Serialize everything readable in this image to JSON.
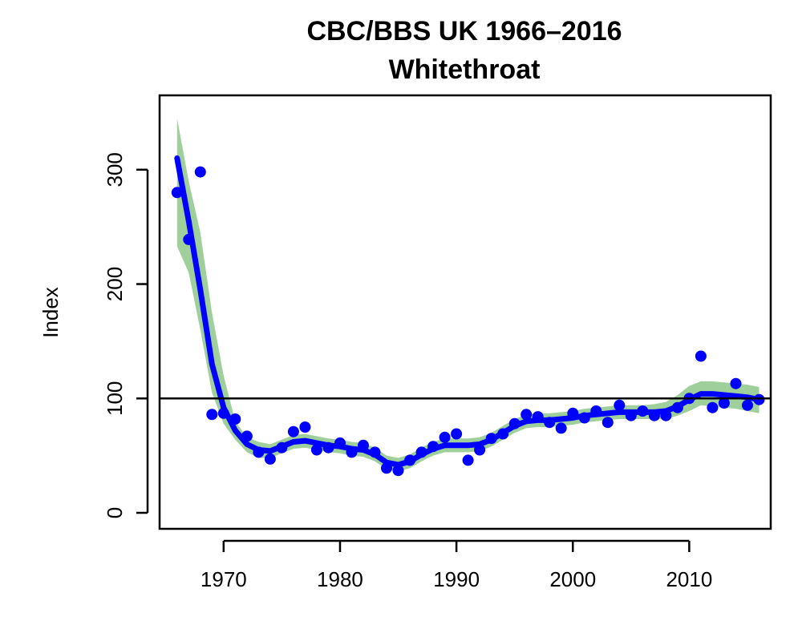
{
  "chart_data": {
    "type": "line",
    "title": "CBC/BBS UK 1966–2016",
    "subtitle": "Whitethroat",
    "xlabel": "",
    "ylabel": "Index",
    "xlim": [
      1964.5,
      2017
    ],
    "ylim": [
      -14,
      365
    ],
    "x_ticks": [
      1970,
      1980,
      1990,
      2000,
      2010
    ],
    "y_ticks": [
      0,
      100,
      200,
      300
    ],
    "reference_line": 100,
    "grid": false,
    "colors": {
      "points": "#0000ff",
      "trend": "#0000ff",
      "band": "#9fcf9b",
      "axis": "#000000"
    },
    "points": [
      [
        1966,
        280
      ],
      [
        1967,
        239
      ],
      [
        1968,
        298
      ],
      [
        1969,
        86
      ],
      [
        1970,
        87
      ],
      [
        1971,
        82
      ],
      [
        1972,
        67
      ],
      [
        1973,
        53
      ],
      [
        1974,
        47
      ],
      [
        1975,
        57
      ],
      [
        1976,
        71
      ],
      [
        1977,
        75
      ],
      [
        1978,
        55
      ],
      [
        1979,
        57
      ],
      [
        1980,
        61
      ],
      [
        1981,
        53
      ],
      [
        1982,
        59
      ],
      [
        1983,
        53
      ],
      [
        1984,
        39
      ],
      [
        1985,
        37
      ],
      [
        1986,
        46
      ],
      [
        1987,
        53
      ],
      [
        1988,
        58
      ],
      [
        1989,
        66
      ],
      [
        1990,
        69
      ],
      [
        1991,
        46
      ],
      [
        1992,
        55
      ],
      [
        1993,
        65
      ],
      [
        1994,
        69
      ],
      [
        1995,
        78
      ],
      [
        1996,
        86
      ],
      [
        1997,
        84
      ],
      [
        1998,
        79
      ],
      [
        1999,
        74
      ],
      [
        2000,
        87
      ],
      [
        2001,
        83
      ],
      [
        2002,
        89
      ],
      [
        2003,
        79
      ],
      [
        2004,
        94
      ],
      [
        2005,
        85
      ],
      [
        2006,
        89
      ],
      [
        2007,
        85
      ],
      [
        2008,
        85
      ],
      [
        2009,
        92
      ],
      [
        2010,
        100
      ],
      [
        2011,
        137
      ],
      [
        2012,
        92
      ],
      [
        2013,
        96
      ],
      [
        2014,
        113
      ],
      [
        2015,
        94
      ],
      [
        2016,
        99
      ]
    ],
    "trend": [
      [
        1966,
        310
      ],
      [
        1967,
        255
      ],
      [
        1968,
        195
      ],
      [
        1969,
        130
      ],
      [
        1970,
        92
      ],
      [
        1971,
        72
      ],
      [
        1972,
        60
      ],
      [
        1973,
        55
      ],
      [
        1974,
        54
      ],
      [
        1975,
        58
      ],
      [
        1976,
        62
      ],
      [
        1977,
        63
      ],
      [
        1978,
        61
      ],
      [
        1979,
        59
      ],
      [
        1980,
        58
      ],
      [
        1981,
        56
      ],
      [
        1982,
        55
      ],
      [
        1983,
        51
      ],
      [
        1984,
        44
      ],
      [
        1985,
        42
      ],
      [
        1986,
        45
      ],
      [
        1987,
        51
      ],
      [
        1988,
        56
      ],
      [
        1989,
        59
      ],
      [
        1990,
        59
      ],
      [
        1991,
        59
      ],
      [
        1992,
        60
      ],
      [
        1993,
        64
      ],
      [
        1994,
        70
      ],
      [
        1995,
        76
      ],
      [
        1996,
        80
      ],
      [
        1997,
        81
      ],
      [
        1998,
        81
      ],
      [
        1999,
        82
      ],
      [
        2000,
        83
      ],
      [
        2001,
        85
      ],
      [
        2002,
        86
      ],
      [
        2003,
        87
      ],
      [
        2004,
        88
      ],
      [
        2005,
        88
      ],
      [
        2006,
        88
      ],
      [
        2007,
        88
      ],
      [
        2008,
        89
      ],
      [
        2009,
        93
      ],
      [
        2010,
        99
      ],
      [
        2011,
        104
      ],
      [
        2012,
        104
      ],
      [
        2013,
        103
      ],
      [
        2014,
        102
      ],
      [
        2015,
        101
      ],
      [
        2016,
        99
      ]
    ],
    "band_upper": [
      [
        1966,
        345
      ],
      [
        1967,
        290
      ],
      [
        1968,
        245
      ],
      [
        1969,
        175
      ],
      [
        1970,
        120
      ],
      [
        1971,
        80
      ],
      [
        1972,
        66
      ],
      [
        1973,
        62
      ],
      [
        1974,
        60
      ],
      [
        1975,
        64
      ],
      [
        1976,
        68
      ],
      [
        1977,
        69
      ],
      [
        1978,
        67
      ],
      [
        1979,
        65
      ],
      [
        1980,
        64
      ],
      [
        1981,
        62
      ],
      [
        1982,
        61
      ],
      [
        1983,
        57
      ],
      [
        1984,
        50
      ],
      [
        1985,
        48
      ],
      [
        1986,
        51
      ],
      [
        1987,
        57
      ],
      [
        1988,
        62
      ],
      [
        1989,
        65
      ],
      [
        1990,
        65
      ],
      [
        1991,
        65
      ],
      [
        1992,
        66
      ],
      [
        1993,
        70
      ],
      [
        1994,
        76
      ],
      [
        1995,
        82
      ],
      [
        1996,
        86
      ],
      [
        1997,
        87
      ],
      [
        1998,
        87
      ],
      [
        1999,
        88
      ],
      [
        2000,
        89
      ],
      [
        2001,
        91
      ],
      [
        2002,
        92
      ],
      [
        2003,
        93
      ],
      [
        2004,
        94
      ],
      [
        2005,
        94
      ],
      [
        2006,
        94
      ],
      [
        2007,
        95
      ],
      [
        2008,
        97
      ],
      [
        2009,
        103
      ],
      [
        2010,
        111
      ],
      [
        2011,
        115
      ],
      [
        2012,
        115
      ],
      [
        2013,
        114
      ],
      [
        2014,
        113
      ],
      [
        2015,
        112
      ],
      [
        2016,
        110
      ]
    ],
    "band_lower": [
      [
        1966,
        233
      ],
      [
        1967,
        210
      ],
      [
        1968,
        160
      ],
      [
        1969,
        105
      ],
      [
        1970,
        78
      ],
      [
        1971,
        64
      ],
      [
        1972,
        53
      ],
      [
        1973,
        48
      ],
      [
        1974,
        48
      ],
      [
        1975,
        52
      ],
      [
        1976,
        56
      ],
      [
        1977,
        57
      ],
      [
        1978,
        55
      ],
      [
        1979,
        53
      ],
      [
        1980,
        52
      ],
      [
        1981,
        50
      ],
      [
        1982,
        49
      ],
      [
        1983,
        45
      ],
      [
        1984,
        38
      ],
      [
        1985,
        36
      ],
      [
        1986,
        39
      ],
      [
        1987,
        45
      ],
      [
        1988,
        50
      ],
      [
        1989,
        53
      ],
      [
        1990,
        53
      ],
      [
        1991,
        53
      ],
      [
        1992,
        54
      ],
      [
        1993,
        58
      ],
      [
        1994,
        64
      ],
      [
        1995,
        70
      ],
      [
        1996,
        74
      ],
      [
        1997,
        75
      ],
      [
        1998,
        75
      ],
      [
        1999,
        76
      ],
      [
        2000,
        77
      ],
      [
        2001,
        79
      ],
      [
        2002,
        80
      ],
      [
        2003,
        81
      ],
      [
        2004,
        82
      ],
      [
        2005,
        82
      ],
      [
        2006,
        82
      ],
      [
        2007,
        82
      ],
      [
        2008,
        82
      ],
      [
        2009,
        85
      ],
      [
        2010,
        89
      ],
      [
        2011,
        94
      ],
      [
        2012,
        93
      ],
      [
        2013,
        92
      ],
      [
        2014,
        91
      ],
      [
        2015,
        89
      ],
      [
        2016,
        87
      ]
    ]
  }
}
